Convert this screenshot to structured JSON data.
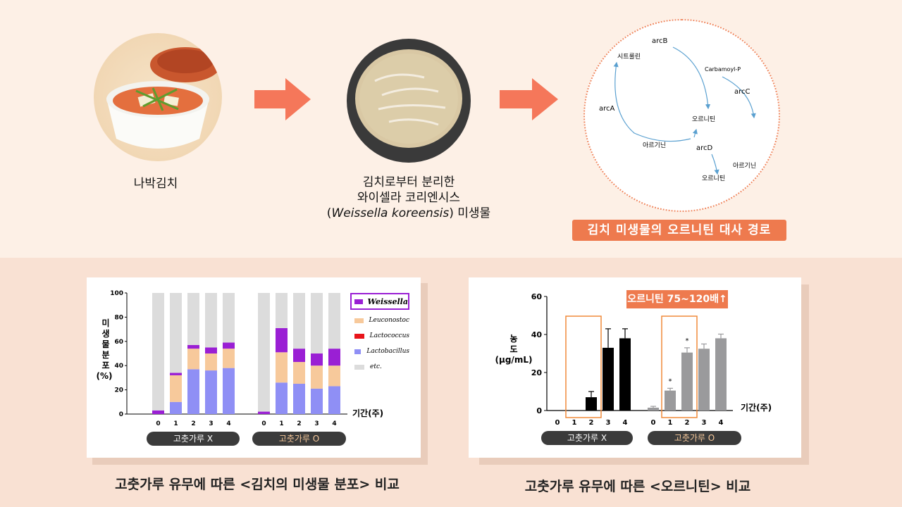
{
  "top": {
    "item1_label": "나박김치",
    "item2_label_line1": "김치로부터 분리한",
    "item2_label_line2": "와이셀라 코리엔시스",
    "item2_label_line3_open": "(",
    "item2_label_line3_species": "Weissella koreensis",
    "item2_label_line3_close": ") 미생물",
    "pathway": {
      "arcB": "arcB",
      "citrulline": "시트룰린",
      "carbamoyl": "Carbamoyl-P",
      "arcC": "arcC",
      "arcA": "arcA",
      "ornithine_center": "오르니틴",
      "arginine_center": "아르기닌",
      "arcD": "arcD",
      "arginine_out": "아르기닌",
      "ornithine_out": "오르니틴"
    },
    "pathway_title": "김치 미생물의 오르니틴 대사 경로"
  },
  "chart1": {
    "y_ticks": [
      "100",
      "80",
      "60",
      "40",
      "20",
      "0"
    ],
    "ylabel_chars": [
      "미",
      "생",
      "물",
      "분",
      "포"
    ],
    "ylabel_unit": "(%)",
    "xlabel": "기간(주)",
    "group_x_label": "고춧가루 X",
    "group_o_label": "고춧가루 O",
    "legend": [
      "Weissella",
      "Leuconostoc",
      "Lactococcus",
      "Lactobacillus",
      "etc."
    ],
    "caption": "고춧가루 유무에 따른 <김치의 미생물 분포> 비교"
  },
  "chart2": {
    "y_ticks": [
      "60",
      "40",
      "20",
      "0"
    ],
    "ylabel_line1": "농",
    "ylabel_line2": "도",
    "ylabel_unit": "(μg/mL)",
    "xlabel": "기간(주)",
    "group_x_label": "고춧가루 X",
    "group_o_label": "고춧가루 O",
    "callout": "오르니틴 75~120배↑",
    "star": "*",
    "caption": "고춧가루 유무에 따른 <오르니틴> 비교"
  },
  "chart_data": [
    {
      "type": "bar",
      "stacked": true,
      "ylabel": "미생물 분포 (%)",
      "xlabel": "기간(주)",
      "ylim": [
        0,
        100
      ],
      "groups": [
        "고춧가루 X",
        "고춧가루 O"
      ],
      "categories": [
        "0",
        "1",
        "2",
        "3",
        "4"
      ],
      "colors": {
        "Weissella": "#9a1fd4",
        "Leuconostoc": "#f7c99b",
        "Lactococcus": "#e8151a",
        "Lactobacillus": "#8f8ff5",
        "etc.": "#dcdcdc"
      },
      "series": [
        {
          "name": "Lactobacillus",
          "group_x": [
            0,
            10,
            37,
            36,
            38
          ],
          "group_o": [
            0,
            26,
            25,
            21,
            23
          ]
        },
        {
          "name": "Lactococcus",
          "group_x": [
            0,
            0,
            0,
            0,
            0
          ],
          "group_o": [
            0,
            0,
            0,
            0,
            0
          ]
        },
        {
          "name": "Leuconostoc",
          "group_x": [
            0,
            22,
            17,
            14,
            16
          ],
          "group_o": [
            0,
            25,
            18,
            19,
            17
          ]
        },
        {
          "name": "Weissella",
          "group_x": [
            3,
            2,
            3,
            5,
            5
          ],
          "group_o": [
            2,
            20,
            11,
            10,
            14
          ]
        },
        {
          "name": "etc.",
          "group_x": [
            97,
            66,
            43,
            45,
            41
          ],
          "group_o": [
            98,
            29,
            46,
            50,
            46
          ]
        }
      ]
    },
    {
      "type": "bar",
      "ylabel": "농도 (μg/mL)",
      "xlabel": "기간(주)",
      "ylim": [
        0,
        60
      ],
      "groups": [
        "고춧가루 X",
        "고춧가루 O"
      ],
      "categories": [
        "0",
        "1",
        "2",
        "3",
        "4"
      ],
      "colors": {
        "group_x": "#000000",
        "group_o": "#9a9a9c"
      },
      "series": [
        {
          "name": "고춧가루 X",
          "values": [
            0,
            0,
            7,
            33,
            38
          ],
          "errors": [
            0,
            0,
            3,
            10,
            5
          ]
        },
        {
          "name": "고춧가루 O",
          "values": [
            1.5,
            10.5,
            30.5,
            32.5,
            38
          ],
          "errors": [
            0.7,
            1.2,
            2.5,
            2.5,
            2.2
          ]
        }
      ]
    }
  ]
}
